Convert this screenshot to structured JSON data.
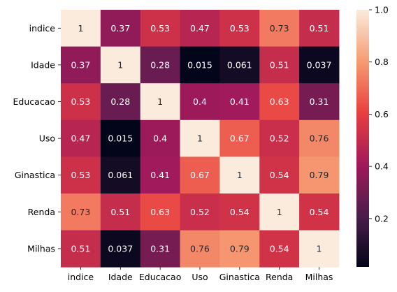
{
  "chart_data": {
    "type": "heatmap",
    "title": "",
    "xlabel": "",
    "ylabel": "",
    "x_labels": [
      "indice",
      "Idade",
      "Educacao",
      "Uso",
      "Ginastica",
      "Renda",
      "Milhas"
    ],
    "y_labels": [
      "indice",
      "Idade",
      "Educacao",
      "Uso",
      "Ginastica",
      "Renda",
      "Milhas"
    ],
    "values": [
      [
        1,
        0.37,
        0.53,
        0.47,
        0.53,
        0.73,
        0.51
      ],
      [
        0.37,
        1,
        0.28,
        0.015,
        0.061,
        0.51,
        0.037
      ],
      [
        0.53,
        0.28,
        1,
        0.4,
        0.41,
        0.63,
        0.31
      ],
      [
        0.47,
        0.015,
        0.4,
        1,
        0.67,
        0.52,
        0.76
      ],
      [
        0.53,
        0.061,
        0.41,
        0.67,
        1,
        0.54,
        0.79
      ],
      [
        0.73,
        0.51,
        0.63,
        0.52,
        0.54,
        1,
        0.54
      ],
      [
        0.51,
        0.037,
        0.31,
        0.76,
        0.79,
        0.54,
        1
      ]
    ],
    "annotations": [
      [
        "1",
        "0.37",
        "0.53",
        "0.47",
        "0.53",
        "0.73",
        "0.51"
      ],
      [
        "0.37",
        "1",
        "0.28",
        "0.015",
        "0.061",
        "0.51",
        "0.037"
      ],
      [
        "0.53",
        "0.28",
        "1",
        "0.4",
        "0.41",
        "0.63",
        "0.31"
      ],
      [
        "0.47",
        "0.015",
        "0.4",
        "1",
        "0.67",
        "0.52",
        "0.76"
      ],
      [
        "0.53",
        "0.061",
        "0.41",
        "0.67",
        "1",
        "0.54",
        "0.79"
      ],
      [
        "0.73",
        "0.51",
        "0.63",
        "0.52",
        "0.54",
        "1",
        "0.54"
      ],
      [
        "0.51",
        "0.037",
        "0.31",
        "0.76",
        "0.79",
        "0.54",
        "1"
      ]
    ],
    "colorbar": {
      "range": [
        0.015,
        1.0
      ],
      "ticks": [
        0.2,
        0.4,
        0.6,
        0.8,
        1.0
      ],
      "tick_labels": [
        "0.2",
        "0.4",
        "0.6",
        "0.8",
        "1.0"
      ],
      "colormap": "rocket",
      "colormap_stops": [
        "#03051a",
        "#4c1d4b",
        "#a11a5b",
        "#e83f3f",
        "#f69c73",
        "#faebdd"
      ]
    }
  }
}
